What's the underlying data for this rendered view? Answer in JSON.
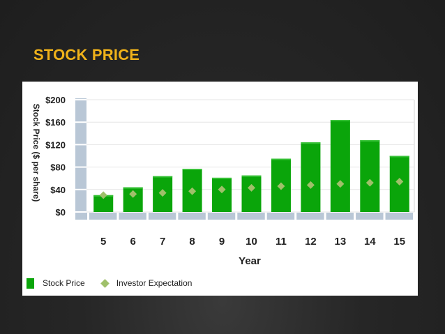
{
  "slide": {
    "title": "STOCK PRICE"
  },
  "chart_data": {
    "type": "bar",
    "categories": [
      "5",
      "6",
      "7",
      "8",
      "9",
      "10",
      "11",
      "12",
      "13",
      "14",
      "15"
    ],
    "series": [
      {
        "name": "Stock Price",
        "type": "bar",
        "color": "#0aa50a",
        "values": [
          30,
          44,
          64,
          77,
          61,
          65,
          95,
          124,
          164,
          128,
          100
        ]
      },
      {
        "name": "Investor Expectation",
        "type": "scatter",
        "marker": "diamond",
        "color": "#9fc06a",
        "values": [
          30,
          32,
          34,
          37,
          40,
          43,
          46,
          48,
          50,
          52,
          54
        ]
      }
    ],
    "xlabel": "Year",
    "ylabel": "Stock Price ($ per share)",
    "ylim": [
      0,
      200
    ],
    "yticks": [
      {
        "value": 0,
        "label": "$0"
      },
      {
        "value": 40,
        "label": "$40"
      },
      {
        "value": 80,
        "label": "$80"
      },
      {
        "value": 120,
        "label": "$120"
      },
      {
        "value": 160,
        "label": "$160"
      },
      {
        "value": 200,
        "label": "$200"
      }
    ],
    "legend_position": "bottom-left",
    "grid": true
  }
}
